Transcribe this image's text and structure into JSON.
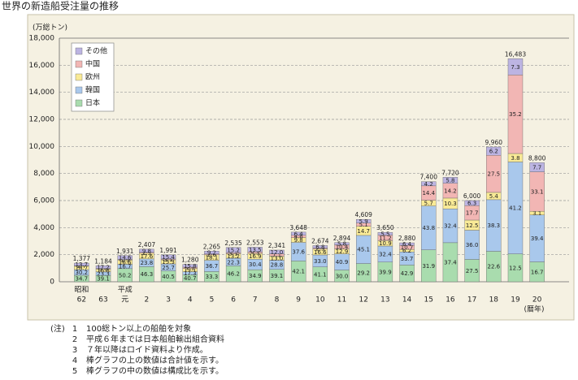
{
  "chart_data": {
    "type": "stacked_bar",
    "title": "世界の新造船受注量の推移",
    "y_unit_label": "(万総トン)",
    "x_unit_label": "(暦年)",
    "categories": [
      "62",
      "63",
      "元",
      "2",
      "3",
      "4",
      "5",
      "6",
      "7",
      "8",
      "9",
      "10",
      "11",
      "12",
      "13",
      "14",
      "15",
      "16",
      "17",
      "18",
      "19",
      "20"
    ],
    "era_labels": [
      "昭和",
      null,
      "平成",
      null,
      null,
      null,
      null,
      null,
      null,
      null,
      null,
      null,
      null,
      null,
      null,
      null,
      null,
      null,
      null,
      null,
      null,
      null
    ],
    "ylim": [
      0,
      18000
    ],
    "yticks": [
      0,
      {
        "value": 2000,
        "label": "2,000"
      },
      {
        "value": 4000,
        "label": "4,000"
      },
      {
        "value": 6000,
        "label": "6,000"
      },
      {
        "value": 8000,
        "label": "8,000"
      },
      {
        "value": 10000,
        "label": "10,000"
      },
      {
        "value": 12000,
        "label": "12,000"
      },
      {
        "value": 14000,
        "label": "14,000"
      },
      {
        "value": 16000,
        "label": "16,000"
      },
      {
        "value": 18000,
        "label": "18,000"
      }
    ],
    "grid": true,
    "totals": {
      "values": [
        1377,
        1184,
        1931,
        2407,
        1991,
        1280,
        2265,
        2535,
        2553,
        2341,
        3648,
        2674,
        2894,
        4609,
        3650,
        2880,
        7400,
        7720,
        6000,
        9960,
        16483,
        8800
      ],
      "value_labels": [
        "1,377",
        "1,184",
        "1,931",
        "2,407",
        "1,991",
        "1,280",
        "2,265",
        "2,535",
        "2,553",
        "2,341",
        "3,648",
        "2,674",
        "2,894",
        "4,609",
        "3,650",
        "2,880",
        "7,400",
        "7,720",
        "6,000",
        "9,960",
        "16,483",
        "8,800"
      ]
    },
    "series": [
      {
        "name": "日本",
        "color": "#a9dcae",
        "values": [
          34.7,
          39.1,
          50.2,
          46.3,
          40.5,
          40.7,
          33.3,
          46.2,
          34.9,
          39.1,
          42.1,
          41.1,
          30.0,
          29.2,
          39.9,
          42.9,
          31.9,
          37.4,
          27.5,
          22.6,
          12.5,
          16.7
        ],
        "value_labels": [
          "34.7",
          "39.1",
          "50.2",
          "46.3",
          "40.5",
          "40.7",
          "33.3",
          "46.2",
          "34.9",
          "39.1",
          "42.1",
          "41.1",
          "30.0",
          "29.2",
          "39.9",
          "42.9",
          "31.9",
          "37.4",
          "27.5",
          "22.6",
          "12.5",
          "16.7"
        ]
      },
      {
        "name": "韓国",
        "color": "#a9c8ec",
        "values": [
          30.2,
          23.3,
          16.7,
          23.8,
          25.7,
          17.3,
          36.7,
          22.3,
          30.4,
          28.8,
          37.6,
          33.0,
          40.9,
          45.1,
          32.4,
          33.7,
          43.8,
          32.4,
          36.0,
          38.3,
          41.2,
          39.4
        ],
        "value_labels": [
          "30.2",
          "23.3",
          "16.7",
          "23.8",
          "25.7",
          "17.3",
          "36.7",
          "22.3",
          "30.4",
          "28.8",
          "37.6",
          "33.0",
          "40.9",
          "45.1",
          "32.4",
          "33.7",
          "43.8",
          "32.4",
          "36.0",
          "38.3",
          "41.2",
          "39.4"
        ]
      },
      {
        "name": "欧州",
        "color": "#f9ea96",
        "values": [
          18.7,
          16.8,
          16.6,
          17.6,
          15.3,
          19.1,
          18.1,
          13.2,
          16.9,
          13.0,
          9.8,
          16.6,
          12.9,
          14.7,
          10.9,
          6.2,
          5.7,
          10.3,
          12.5,
          5.4,
          3.8,
          3.1
        ],
        "value_labels": [
          "18.7",
          "16.8",
          "16.6",
          "17.6",
          "15.3",
          "19.1",
          "18.1",
          "13.2",
          "16.9",
          "13.0",
          "9.8",
          "16.6",
          "12.9",
          "14.7",
          "10.9",
          "6.2",
          "5.7",
          "10.3",
          "12.5",
          "5.4",
          "3.8",
          "3.1"
        ]
      },
      {
        "name": "中国",
        "color": "#f2b6b4",
        "values": [
          2.7,
          3.6,
          1.9,
          2.5,
          3.1,
          7.1,
          2.6,
          3.1,
          4.3,
          7.1,
          4.6,
          2.5,
          10.4,
          5.1,
          11.2,
          10.7,
          14.4,
          14.2,
          17.7,
          27.5,
          35.2,
          33.1
        ],
        "value_labels": [
          "2.7",
          "3.6",
          "1.9",
          "2.5",
          "3.1",
          "7.1",
          "2.6",
          "3.1",
          "4.3",
          "7.1",
          "4.6",
          "2.5",
          "10.4",
          "5.1",
          "11.2",
          "10.7",
          "14.4",
          "14.2",
          "17.7",
          "27.5",
          "35.2",
          "33.1"
        ]
      },
      {
        "name": "その他",
        "color": "#bcb4e2",
        "values": [
          13.7,
          17.2,
          14.6,
          9.8,
          15.4,
          15.8,
          9.2,
          15.2,
          13.5,
          12.0,
          6.4,
          6.8,
          5.8,
          5.9,
          5.5,
          6.4,
          4.2,
          5.8,
          6.3,
          6.2,
          7.3,
          7.7
        ],
        "value_labels": [
          "13.7",
          "17.2",
          "14.6",
          "9.8",
          "15.4",
          "15.8",
          "9.2",
          "15.2",
          "13.5",
          "12.0",
          "6.4",
          "6.8",
          "5.8",
          "5.9",
          "5.5",
          "6.4",
          "4.2",
          "5.8",
          "6.3",
          "6.2",
          "7.3",
          "7.7"
        ]
      }
    ],
    "legend": "upper left",
    "notes_label": "(注)",
    "notes": [
      {
        "num": 1,
        "text": "100総トン以上の船舶を対象"
      },
      {
        "num": 2,
        "text": "平成６年までは日本船舶輸出組合資料"
      },
      {
        "num": 3,
        "text": "７年以降はロイド資料より作成。"
      },
      {
        "num": 4,
        "text": "棒グラフの上の数値は合計値を示す。"
      },
      {
        "num": 5,
        "text": "棒グラフの中の数値は構成比を示す。"
      }
    ]
  }
}
